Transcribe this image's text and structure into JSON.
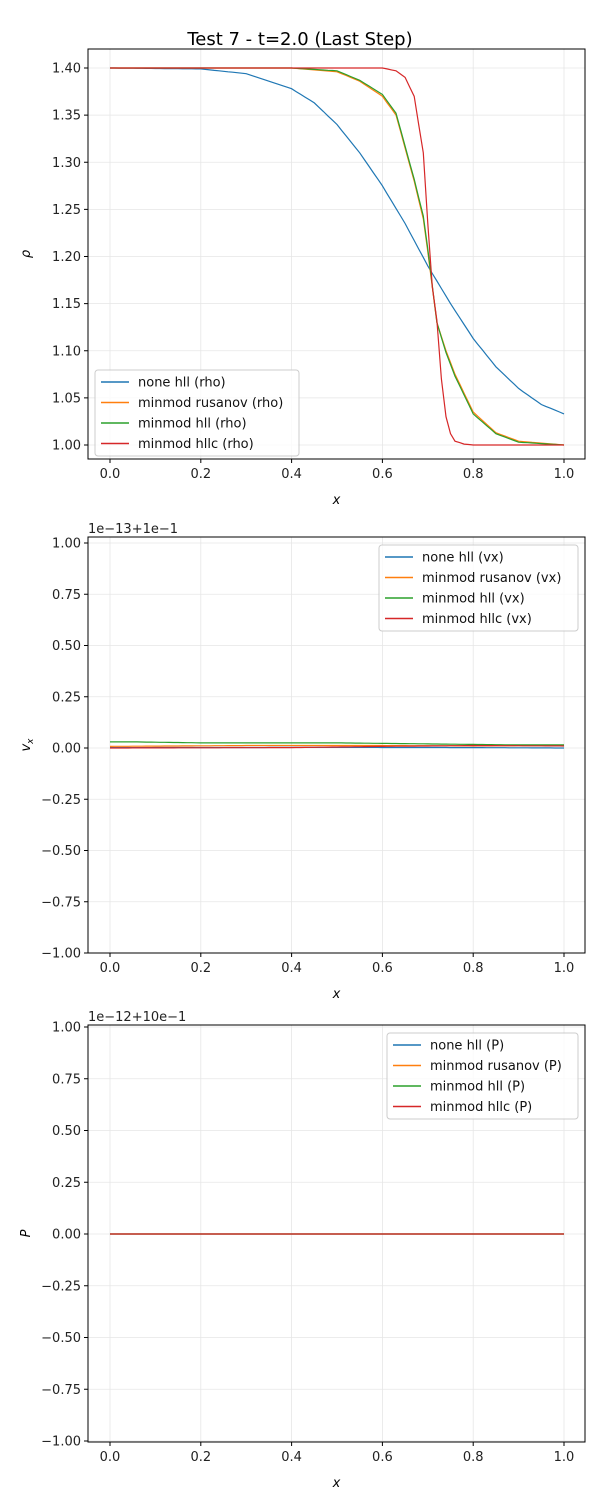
{
  "figure": {
    "title": "Test 7 - t=2.0 (Last Step)",
    "colors": {
      "none_hll": "#1f77b4",
      "minmod_rusanov": "#ff7f0e",
      "minmod_hll": "#2ca02c",
      "minmod_hllc": "#d62728",
      "grid": "#e6e6e6",
      "axes": "#000000"
    }
  },
  "chart_data": [
    {
      "type": "line",
      "title": "Test 7 - t=2.0 (Last Step)",
      "xlabel": "x",
      "ylabel": "ρ",
      "xlim": [
        -0.05,
        1.05
      ],
      "ylim": [
        0.98,
        1.42
      ],
      "xticks": [
        "0.0",
        "0.2",
        "0.4",
        "0.6",
        "0.8",
        "1.0"
      ],
      "yticks": [
        "1.00",
        "1.05",
        "1.10",
        "1.15",
        "1.20",
        "1.25",
        "1.30",
        "1.35",
        "1.40"
      ],
      "offset_text": "",
      "grid": true,
      "legend_position": "lower left",
      "series": [
        {
          "name": "none hll (rho)",
          "color": "#1f77b4",
          "x": [
            0.0,
            0.2,
            0.3,
            0.4,
            0.45,
            0.5,
            0.55,
            0.6,
            0.65,
            0.7,
            0.75,
            0.8,
            0.85,
            0.9,
            0.95,
            1.0
          ],
          "values": [
            1.4,
            1.399,
            1.394,
            1.378,
            1.363,
            1.34,
            1.31,
            1.275,
            1.235,
            1.19,
            1.15,
            1.113,
            1.083,
            1.06,
            1.043,
            1.033
          ]
        },
        {
          "name": "minmod rusanov (rho)",
          "color": "#ff7f0e",
          "x": [
            0.0,
            0.4,
            0.5,
            0.55,
            0.6,
            0.63,
            0.65,
            0.67,
            0.69,
            0.7,
            0.72,
            0.74,
            0.76,
            0.78,
            0.8,
            0.85,
            0.9,
            1.0
          ],
          "values": [
            1.4,
            1.4,
            1.396,
            1.386,
            1.37,
            1.35,
            1.315,
            1.28,
            1.24,
            1.205,
            1.13,
            1.1,
            1.075,
            1.055,
            1.035,
            1.013,
            1.004,
            1.0
          ]
        },
        {
          "name": "minmod hll (rho)",
          "color": "#2ca02c",
          "x": [
            0.0,
            0.4,
            0.5,
            0.55,
            0.6,
            0.63,
            0.65,
            0.67,
            0.69,
            0.7,
            0.72,
            0.74,
            0.76,
            0.78,
            0.8,
            0.85,
            0.9,
            1.0
          ],
          "values": [
            1.4,
            1.4,
            1.397,
            1.387,
            1.372,
            1.352,
            1.317,
            1.282,
            1.243,
            1.208,
            1.13,
            1.098,
            1.073,
            1.053,
            1.033,
            1.012,
            1.003,
            1.0
          ]
        },
        {
          "name": "minmod hllc (rho)",
          "color": "#d62728",
          "x": [
            0.0,
            0.6,
            0.63,
            0.65,
            0.67,
            0.69,
            0.7,
            0.71,
            0.72,
            0.73,
            0.74,
            0.75,
            0.76,
            0.78,
            0.8,
            1.0
          ],
          "values": [
            1.4,
            1.4,
            1.397,
            1.39,
            1.37,
            1.31,
            1.235,
            1.168,
            1.132,
            1.07,
            1.03,
            1.012,
            1.004,
            1.001,
            1.0,
            1.0
          ]
        }
      ]
    },
    {
      "type": "line",
      "xlabel": "x",
      "ylabel": "v_x",
      "xlim": [
        -0.05,
        1.05
      ],
      "ylim": [
        -1.0,
        1.03
      ],
      "xticks": [
        "0.0",
        "0.2",
        "0.4",
        "0.6",
        "0.8",
        "1.0"
      ],
      "yticks": [
        "−1.00",
        "−0.75",
        "−0.50",
        "−0.25",
        "0.00",
        "0.25",
        "0.50",
        "0.75",
        "1.00"
      ],
      "offset_text": "1e−13+1e−1",
      "grid": true,
      "legend_position": "upper right",
      "series": [
        {
          "name": "none hll (vx)",
          "color": "#1f77b4",
          "x": [
            0.0,
            0.5,
            0.8,
            1.0
          ],
          "values": [
            0.002,
            0.003,
            0.002,
            0.0
          ]
        },
        {
          "name": "minmod rusanov (vx)",
          "color": "#ff7f0e",
          "x": [
            0.0,
            0.3,
            0.6,
            0.8,
            1.0
          ],
          "values": [
            0.008,
            0.012,
            0.012,
            0.01,
            0.012
          ]
        },
        {
          "name": "minmod hll (vx)",
          "color": "#2ca02c",
          "x": [
            0.0,
            0.05,
            0.2,
            0.5,
            0.7,
            0.9,
            1.0
          ],
          "values": [
            0.03,
            0.03,
            0.025,
            0.025,
            0.02,
            0.015,
            0.015
          ]
        },
        {
          "name": "minmod hllc (vx)",
          "color": "#d62728",
          "x": [
            0.0,
            0.4,
            0.6,
            0.8,
            1.0
          ],
          "values": [
            0.0,
            0.002,
            0.008,
            0.012,
            0.01
          ]
        }
      ]
    },
    {
      "type": "line",
      "xlabel": "x",
      "ylabel": "P",
      "xlim": [
        -0.05,
        1.05
      ],
      "ylim": [
        -1.0,
        1.01
      ],
      "xticks": [
        "0.0",
        "0.2",
        "0.4",
        "0.6",
        "0.8",
        "1.0"
      ],
      "yticks": [
        "−1.00",
        "−0.75",
        "−0.50",
        "−0.25",
        "0.00",
        "0.25",
        "0.50",
        "0.75",
        "1.00"
      ],
      "offset_text": "1e−12+10e−1",
      "grid": true,
      "legend_position": "upper right",
      "series": [
        {
          "name": "none hll (P)",
          "color": "#1f77b4",
          "x": [
            0.0,
            1.0
          ],
          "values": [
            0.0,
            0.0
          ]
        },
        {
          "name": "minmod rusanov (P)",
          "color": "#ff7f0e",
          "x": [
            0.0,
            1.0
          ],
          "values": [
            0.0,
            0.0
          ]
        },
        {
          "name": "minmod hll (P)",
          "color": "#2ca02c",
          "x": [
            0.0,
            1.0
          ],
          "values": [
            0.0,
            0.0
          ]
        },
        {
          "name": "minmod hllc (P)",
          "color": "#d62728",
          "x": [
            0.0,
            1.0
          ],
          "values": [
            0.0,
            0.0
          ]
        }
      ]
    }
  ]
}
